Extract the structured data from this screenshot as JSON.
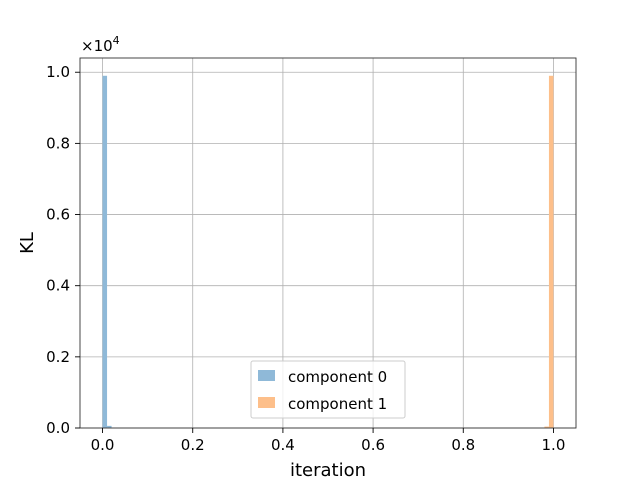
{
  "chart_data": {
    "type": "bar",
    "xlabel": "iteration",
    "ylabel": "KL",
    "y_multiplier": {
      "base": "×10",
      "exponent": "4"
    },
    "xlim": [
      -0.05,
      1.05
    ],
    "ylim": [
      0,
      10400
    ],
    "xticks": [
      "0.0",
      "0.2",
      "0.4",
      "0.6",
      "0.8",
      "1.0"
    ],
    "yticks": [
      "0.0",
      "0.2",
      "0.4",
      "0.6",
      "0.8",
      "1.0"
    ],
    "xtick_values": [
      0.0,
      0.2,
      0.4,
      0.6,
      0.8,
      1.0
    ],
    "ytick_values": [
      0,
      2000,
      4000,
      6000,
      8000,
      10000
    ],
    "grid": true,
    "legend_position": "lower-center",
    "series": [
      {
        "name": "component 0",
        "color": "#8fb9d8",
        "bins": [
          {
            "x0": 0.0,
            "x1": 0.01,
            "value": 9900
          },
          {
            "x0": 0.01,
            "x1": 0.02,
            "value": 60
          }
        ]
      },
      {
        "name": "component 1",
        "color": "#fdbf8a",
        "bins": [
          {
            "x0": 0.98,
            "x1": 0.99,
            "value": 40
          },
          {
            "x0": 0.99,
            "x1": 1.0,
            "value": 9900
          }
        ]
      }
    ]
  }
}
